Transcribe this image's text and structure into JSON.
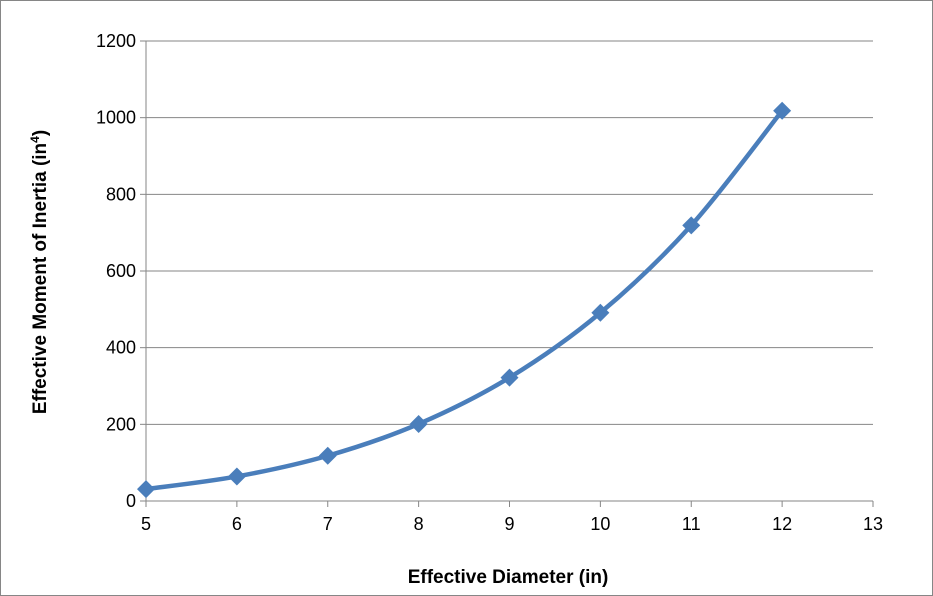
{
  "chart_data": {
    "type": "line",
    "title": "",
    "xlabel": "Effective Diameter (in)",
    "ylabel": {
      "prefix": "Effective Moment of Inertia (in",
      "sup": "4",
      "suffix": ")"
    },
    "xlim": [
      5,
      13
    ],
    "ylim": [
      0,
      1200
    ],
    "xticks": [
      "5",
      "6",
      "7",
      "8",
      "9",
      "10",
      "11",
      "12",
      "13"
    ],
    "yticks": [
      "0",
      "200",
      "400",
      "600",
      "800",
      "1000",
      "1200"
    ],
    "grid": "horizontal",
    "legend": "none",
    "smooth": true,
    "marker": "diamond",
    "series": [
      {
        "x": [
          5,
          6,
          7,
          8,
          9,
          10,
          11,
          12
        ],
        "y": [
          31,
          64,
          118,
          201,
          322,
          491,
          719,
          1018
        ],
        "color": "#4a7ebb"
      }
    ]
  }
}
